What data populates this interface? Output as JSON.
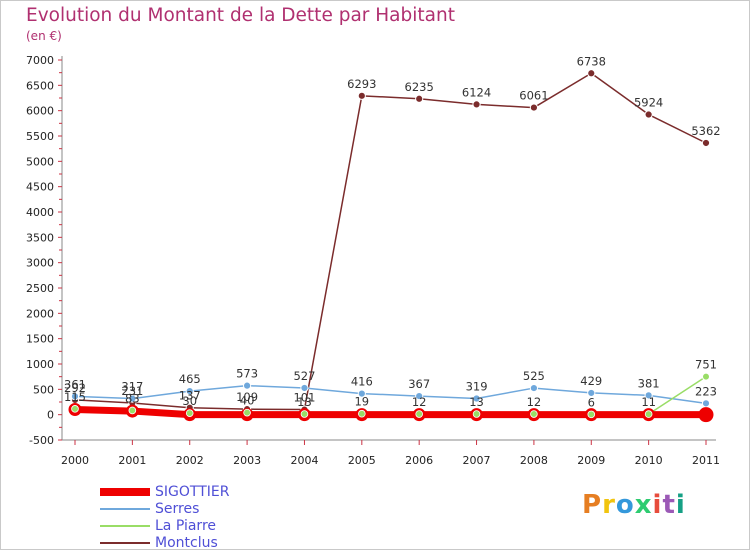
{
  "header": {
    "title": "Evolution du Montant de la Dette par Habitant",
    "subtitle": "(en €)"
  },
  "logo": {
    "text": "Proxiti",
    "colors": [
      "#e67e22",
      "#f1c40f",
      "#3498db",
      "#2ecc71",
      "#e74c3c",
      "#9b59b6",
      "#16a085"
    ]
  },
  "chart_data": {
    "type": "line",
    "x": [
      "2000",
      "2001",
      "2002",
      "2003",
      "2004",
      "2005",
      "2006",
      "2007",
      "2008",
      "2009",
      "2010",
      "2011"
    ],
    "ylim": [
      -500,
      7000
    ],
    "yticks": [
      -500,
      0,
      500,
      1000,
      1500,
      2000,
      2500,
      3000,
      3500,
      4000,
      4500,
      5000,
      5500,
      6000,
      6500,
      7000
    ],
    "grid": false,
    "legend_position": "bottom-left",
    "series": [
      {
        "name": "SIGOTTIER",
        "color": "#ee0000",
        "values": [
          102,
          71,
          0,
          0,
          0,
          0,
          0,
          0,
          0,
          0,
          0,
          0
        ],
        "labels": false
      },
      {
        "name": "Serres",
        "color": "#6fa8dc",
        "values": [
          361,
          317,
          465,
          573,
          527,
          416,
          367,
          319,
          525,
          429,
          381,
          223
        ],
        "labels": true
      },
      {
        "name": "La Piarre",
        "color": "#99dd66",
        "values": [
          115,
          83,
          30,
          40,
          13,
          19,
          12,
          13,
          12,
          6,
          11,
          751
        ],
        "labels": true
      },
      {
        "name": "Montclus",
        "color": "#7b2c2c",
        "values": [
          292,
          231,
          137,
          109,
          101,
          6293,
          6235,
          6124,
          6061,
          6738,
          5924,
          5362
        ],
        "labels": true
      }
    ]
  }
}
